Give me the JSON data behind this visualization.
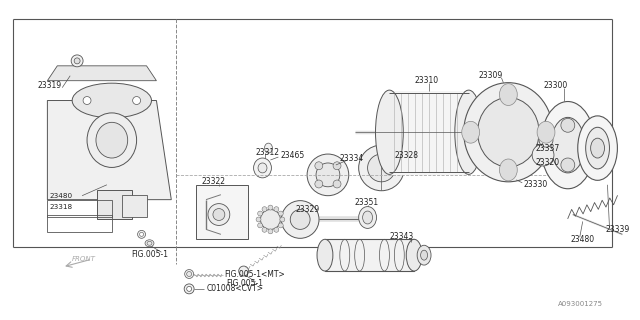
{
  "bg_color": "#ffffff",
  "line_color": "#555555",
  "text_color": "#222222",
  "ref_number": "A093001275",
  "fig_label_mt": "FIG.005-1<MT>",
  "fig_label_cvt": "C01008<CVT>",
  "front_label": "FRONT"
}
